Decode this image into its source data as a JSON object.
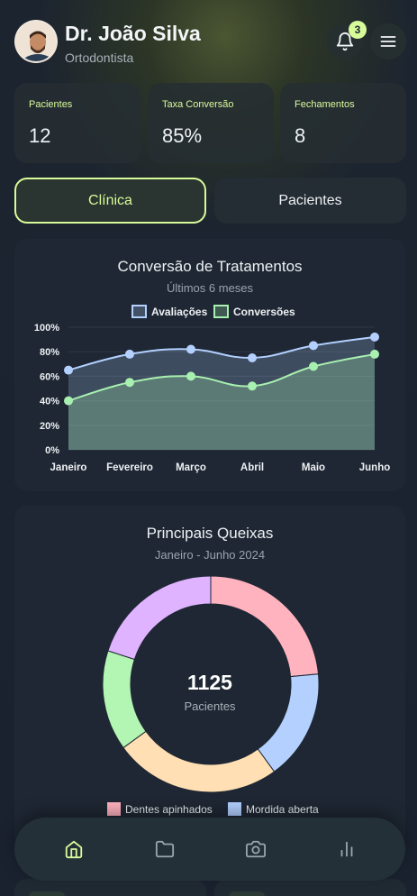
{
  "header": {
    "name": "Dr. João Silva",
    "role": "Ortodontista",
    "notification_count": "3",
    "icons": {
      "bell": "bell-icon",
      "menu": "hamburger-menu-icon"
    }
  },
  "stats": [
    {
      "label": "Pacientes",
      "value": "12"
    },
    {
      "label": "Taxa Conversão",
      "value": "85%"
    },
    {
      "label": "Fechamentos",
      "value": "8"
    }
  ],
  "tabs": [
    {
      "label": "Clínica",
      "active": true
    },
    {
      "label": "Pacientes",
      "active": false
    }
  ],
  "colors": {
    "accent": "#d8fb9a",
    "avaliacoes": "#b3d0ff",
    "conversoes": "#a8f0b0",
    "card": "#1e2733"
  },
  "line_chart": {
    "title": "Conversão de Tratamentos",
    "subtitle": "Últimos 6 meses",
    "legend": [
      "Avaliações",
      "Conversões"
    ]
  },
  "donut_chart": {
    "title": "Principais Queixas",
    "subtitle": "Janeiro - Junho 2024",
    "center_value": "1125",
    "center_label": "Pacientes",
    "legend_visible": [
      "Dentes apinhados",
      "Mordida aberta"
    ]
  },
  "chart_data": [
    {
      "type": "area",
      "title": "Conversão de Tratamentos",
      "subtitle": "Últimos 6 meses",
      "categories": [
        "Janeiro",
        "Fevereiro",
        "Março",
        "Abril",
        "Maio",
        "Junho"
      ],
      "series": [
        {
          "name": "Avaliações",
          "values": [
            65,
            78,
            82,
            75,
            85,
            92
          ],
          "color": "#b3d0ff"
        },
        {
          "name": "Conversões",
          "values": [
            40,
            55,
            60,
            52,
            68,
            78
          ],
          "color": "#a8f0b0"
        }
      ],
      "yticks": [
        "0%",
        "20%",
        "40%",
        "60%",
        "80%",
        "100%"
      ],
      "ylim": [
        0,
        100
      ],
      "grid": true,
      "legend": "top"
    },
    {
      "type": "pie",
      "title": "Principais Queixas",
      "subtitle": "Janeiro - Junho 2024",
      "total": 1125,
      "slices": [
        {
          "label": "Dentes apinhados",
          "share": 0.235,
          "color": "#ffb3bf"
        },
        {
          "label": "Mordida aberta",
          "share": 0.165,
          "color": "#b3d0ff"
        },
        {
          "label": "",
          "share": 0.25,
          "color": "#ffdfb3"
        },
        {
          "label": "",
          "share": 0.15,
          "color": "#b3f5b3"
        },
        {
          "label": "",
          "share": 0.2,
          "color": "#dfb3ff"
        }
      ],
      "legend": "bottom"
    }
  ],
  "bottom_nav": [
    {
      "icon": "home-icon",
      "active": true
    },
    {
      "icon": "folder-icon",
      "active": false
    },
    {
      "icon": "camera-icon",
      "active": false
    },
    {
      "icon": "bar-chart-icon",
      "active": false
    }
  ]
}
